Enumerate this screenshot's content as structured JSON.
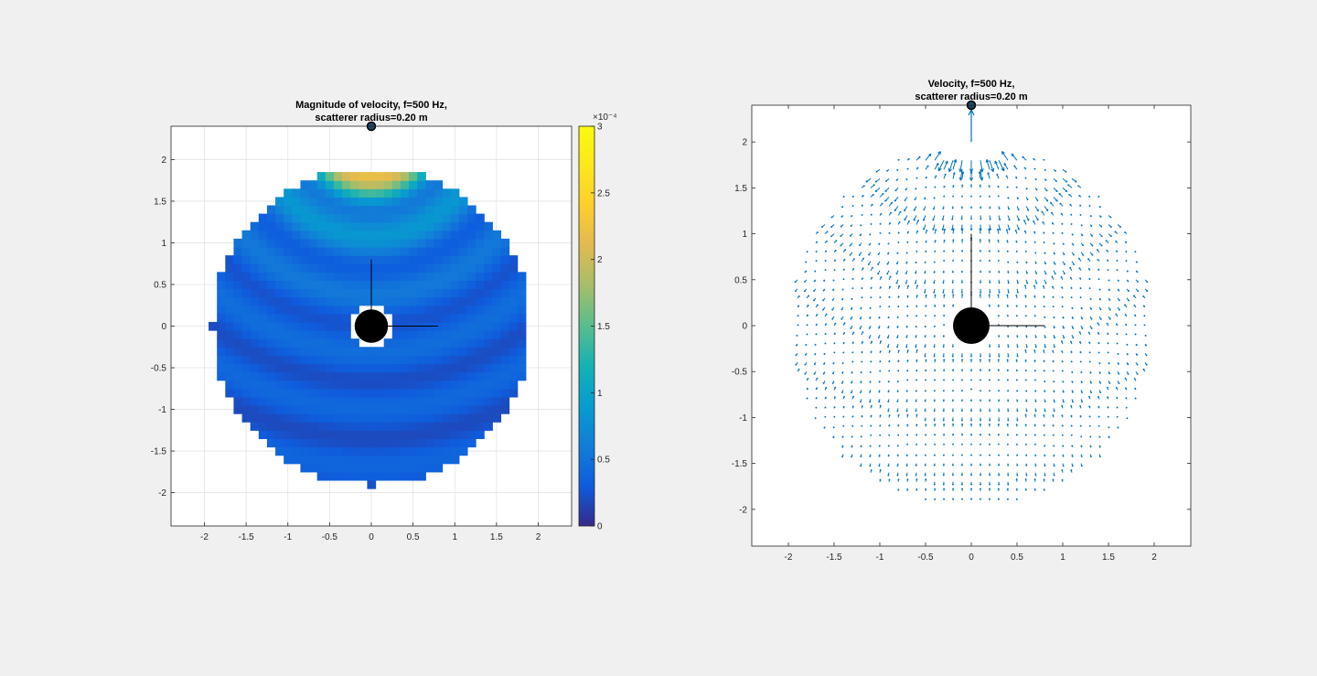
{
  "chart_data": [
    {
      "type": "heatmap",
      "title_lines": [
        "Magnitude of velocity, f=500 Hz,",
        "scatterer radius=0.20 m"
      ],
      "xlabel": "",
      "ylabel": "",
      "xlim": [
        -2.4,
        2.4
      ],
      "ylim": [
        -2.4,
        2.4
      ],
      "xticks": [
        -2,
        -1.5,
        -1,
        -0.5,
        0,
        0.5,
        1,
        1.5,
        2
      ],
      "xtick_labels": [
        "-2",
        "-1.5",
        "-1",
        "-0.5",
        "0",
        "0.5",
        "1",
        "1.5",
        "2"
      ],
      "yticks": [
        -2,
        -1.5,
        -1,
        -0.5,
        0,
        0.5,
        1,
        1.5,
        2
      ],
      "ytick_labels": [
        "-2",
        "-1.5",
        "-1",
        "-0.5",
        "0",
        "0.5",
        "1",
        "1.5",
        "2"
      ],
      "grid": true,
      "domain_radius": 1.9,
      "scatterer_radius": 0.2,
      "source_point": [
        0,
        2.4
      ],
      "frequency_hz": 500,
      "colorbar": {
        "limits": [
          0,
          3
        ],
        "multiplier_label": "×10⁻⁴",
        "ticks": [
          0,
          0.5,
          1,
          1.5,
          2,
          2.5,
          3
        ],
        "tick_labels": [
          "0",
          "0.5",
          "1",
          "1.5",
          "2",
          "2.5",
          "3"
        ],
        "colormap": "parula"
      }
    },
    {
      "type": "quiver",
      "title_lines": [
        "Velocity, f=500 Hz,",
        "scatterer radius=0.20 m"
      ],
      "xlabel": "",
      "ylabel": "",
      "xlim": [
        -2.4,
        2.4
      ],
      "ylim": [
        -2.4,
        2.4
      ],
      "xticks": [
        -2,
        -1.5,
        -1,
        -0.5,
        0,
        0.5,
        1,
        1.5,
        2
      ],
      "xtick_labels": [
        "-2",
        "-1.5",
        "-1",
        "-0.5",
        "0",
        "0.5",
        "1",
        "1.5",
        "2"
      ],
      "yticks": [
        -2,
        -1.5,
        -1,
        -0.5,
        0,
        0.5,
        1,
        1.5,
        2
      ],
      "ytick_labels": [
        "-2",
        "-1.5",
        "-1",
        "-0.5",
        "0",
        "0.5",
        "1",
        "1.5",
        "2"
      ],
      "grid": false,
      "domain_radius": 2.0,
      "scatterer_radius": 0.2,
      "source_point": [
        0,
        2.4
      ],
      "arrow_color": "#0072bd",
      "frequency_hz": 500
    }
  ]
}
